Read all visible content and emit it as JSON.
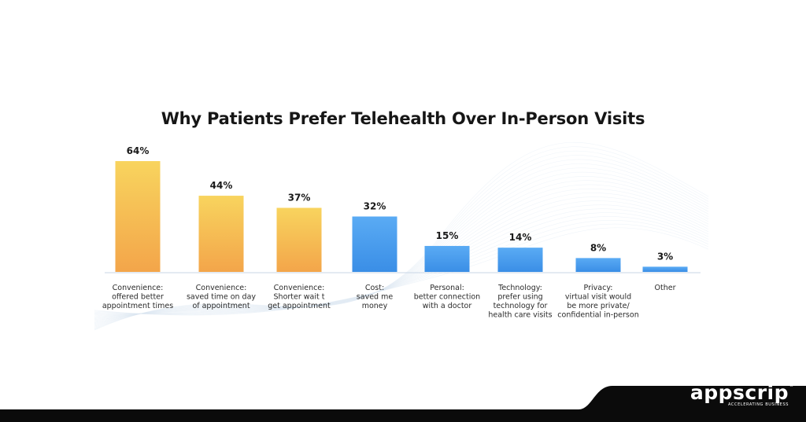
{
  "chart_data": {
    "type": "bar",
    "title": "Why Patients Prefer Telehealth Over In-Person Visits",
    "xlabel": "",
    "ylabel": "",
    "ylim": [
      0,
      64
    ],
    "grid": false,
    "categories": [
      [
        "Convenience:",
        "offered better",
        "appointment times"
      ],
      [
        "Convenience:",
        "saved time on day",
        "of appointment"
      ],
      [
        "Convenience:",
        "Shorter wait t",
        "get appointment"
      ],
      [
        "Cost:",
        "saved me",
        "money"
      ],
      [
        "Personal:",
        "better connection",
        "with a doctor"
      ],
      [
        "Technology:",
        "prefer using",
        "technology for",
        "health care visits"
      ],
      [
        "Privacy:",
        "virtual visit would",
        "be more private/",
        "confidential in-person"
      ],
      [
        "Other"
      ]
    ],
    "values": [
      64,
      44,
      37,
      32,
      15,
      14,
      8,
      3
    ],
    "data_labels": [
      "64%",
      "44%",
      "37%",
      "32%",
      "15%",
      "14%",
      "8%",
      "3%"
    ],
    "bar_styles": [
      "yellow",
      "yellow",
      "yellow",
      "blue",
      "blue",
      "blue",
      "blue",
      "blue"
    ],
    "colors": {
      "yellow_top": "#f8d45e",
      "yellow_bottom": "#f3a54a",
      "blue_top": "#5aabf4",
      "blue_bottom": "#3a8ee6",
      "baseline": "#c9d6e6",
      "label": "#1a1a1a"
    }
  },
  "footer": {
    "brand_name": "appscrip",
    "brand_tagline": "ACCELERATING BUSINESS",
    "brand_mark": "®",
    "background": "#0b0b0b"
  }
}
